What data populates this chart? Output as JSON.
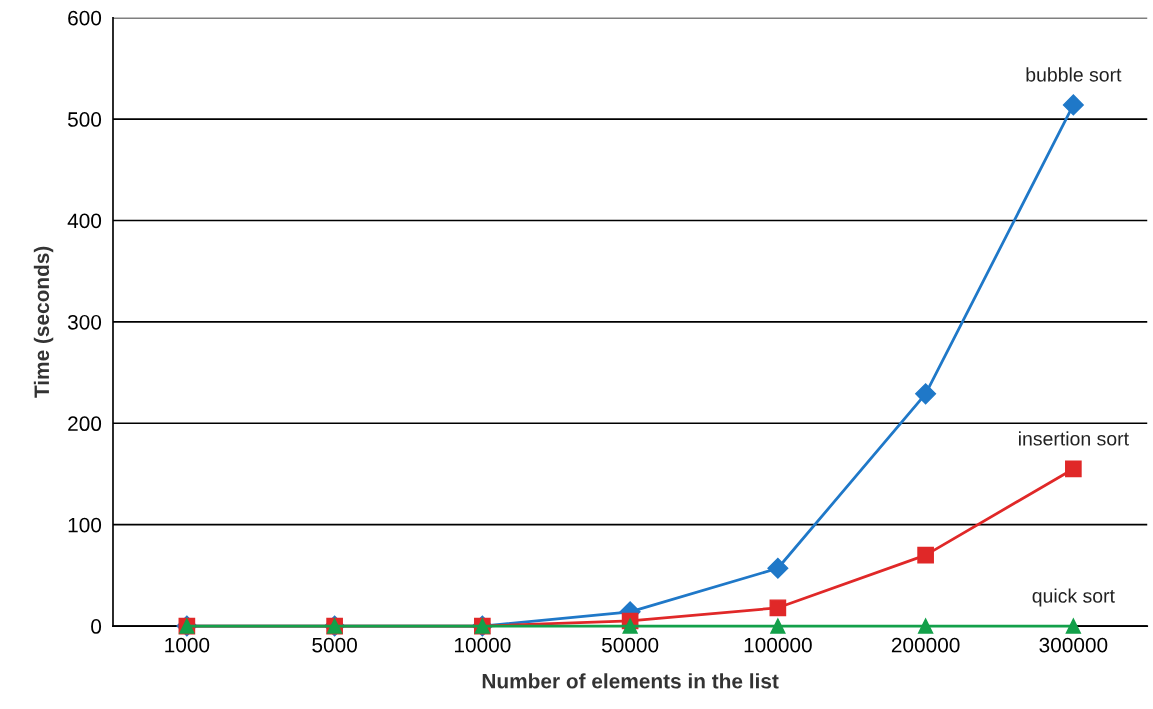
{
  "chart_data": {
    "type": "line",
    "xlabel": "Number of elements in the list",
    "ylabel": "Time (seconds)",
    "categories": [
      "1000",
      "5000",
      "10000",
      "50000",
      "100000",
      "200000",
      "300000"
    ],
    "series": [
      {
        "name": "bubble sort",
        "color": "#1f78c8",
        "marker": "diamond",
        "values": [
          0,
          0,
          0,
          14,
          57,
          229,
          514
        ]
      },
      {
        "name": "insertion sort",
        "color": "#e02828",
        "marker": "square",
        "values": [
          0,
          0,
          0,
          5,
          18,
          70,
          155
        ]
      },
      {
        "name": "quick sort",
        "color": "#13a04a",
        "marker": "triangle",
        "values": [
          0,
          0,
          0,
          0,
          0,
          0,
          0
        ]
      }
    ],
    "ylim": [
      0,
      600
    ],
    "yticks": [
      0,
      100,
      200,
      300,
      400,
      500,
      600
    ],
    "grid": "y",
    "legend": false
  }
}
